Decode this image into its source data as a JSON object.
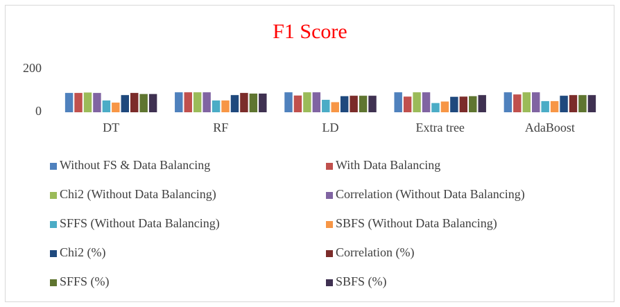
{
  "chart_data": {
    "type": "bar",
    "title": "F1 Score",
    "categories": [
      "DT",
      "RF",
      "LD",
      "Extra tree",
      "AdaBoost"
    ],
    "series": [
      {
        "name": "Without FS & Data Balancing",
        "color": "#4f81bd",
        "values": [
          90,
          93,
          93,
          93,
          93
        ]
      },
      {
        "name": "With Data Balancing",
        "color": "#c0504d",
        "values": [
          90,
          93,
          78,
          73,
          83
        ]
      },
      {
        "name": "Chi2  (Without Data Balancing)",
        "color": "#9bbb59",
        "values": [
          92,
          93,
          93,
          93,
          93
        ]
      },
      {
        "name": "Correlation (Without  Data Balancing)",
        "color": "#8064a2",
        "values": [
          90,
          93,
          93,
          93,
          93
        ]
      },
      {
        "name": "SFFS (Without  Data Balancing)",
        "color": "#4bacc6",
        "values": [
          55,
          55,
          58,
          43,
          52
        ]
      },
      {
        "name": "SBFS (Without  Data Balancing)",
        "color": "#f79646",
        "values": [
          45,
          55,
          47,
          50,
          52
        ]
      },
      {
        "name": "Chi2  (%)",
        "color": "#1f497d",
        "values": [
          80,
          80,
          75,
          72,
          77
        ]
      },
      {
        "name": "Correlation (%)",
        "color": "#7b2c2a",
        "values": [
          90,
          90,
          77,
          73,
          80
        ]
      },
      {
        "name": "SFFS  (%)",
        "color": "#5f7530",
        "values": [
          85,
          87,
          77,
          75,
          80
        ]
      },
      {
        "name": "SBFS (%)",
        "color": "#3f3151",
        "values": [
          85,
          87,
          77,
          80,
          80
        ]
      }
    ],
    "ylim": [
      0,
      200
    ],
    "yticks": [
      0,
      200
    ],
    "grid": false,
    "title_color": "#ff0000"
  }
}
